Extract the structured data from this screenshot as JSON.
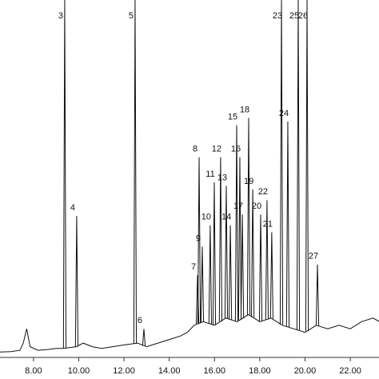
{
  "chart_data": {
    "type": "chromatogram",
    "x": [
      6.5,
      7.0,
      7.4,
      7.55,
      7.7,
      7.85,
      8.2,
      8.6,
      9.0,
      9.3,
      9.9,
      10.2,
      10.6,
      11.0,
      11.5,
      12.0,
      12.6,
      13.0,
      13.5,
      14.0,
      14.5,
      14.8,
      15.1,
      15.5,
      16.0,
      16.5,
      17.0,
      17.5,
      18.0,
      18.5,
      19.0,
      19.5,
      20.0,
      20.5,
      21.0,
      21.5,
      22.0,
      22.5,
      23.0,
      23.3
    ],
    "values": [
      1.5,
      1.6,
      2.0,
      4,
      8,
      3,
      2,
      2.2,
      2.5,
      2.5,
      3,
      4,
      3,
      2.5,
      3,
      3.5,
      4,
      3,
      4,
      5,
      6,
      7,
      9,
      10,
      9,
      11,
      10,
      12,
      10,
      11,
      9,
      8,
      7,
      9,
      8,
      9,
      8,
      10,
      11,
      10
    ],
    "peaks": [
      {
        "label": "3",
        "x": 9.38,
        "value": 100
      },
      {
        "label": "4",
        "x": 9.91,
        "value": 39.6
      },
      {
        "label": "5",
        "x": 12.49,
        "value": 100
      },
      {
        "label": "6",
        "x": 12.88,
        "value": 8
      },
      {
        "label": "7",
        "x": 15.25,
        "value": 23
      },
      {
        "label": "8",
        "x": 15.32,
        "value": 56
      },
      {
        "label": "9",
        "x": 15.46,
        "value": 31
      },
      {
        "label": "10",
        "x": 15.81,
        "value": 37
      },
      {
        "label": "11",
        "x": 15.99,
        "value": 49
      },
      {
        "label": "12",
        "x": 16.27,
        "value": 56
      },
      {
        "label": "13",
        "x": 16.52,
        "value": 48
      },
      {
        "label": "14",
        "x": 16.7,
        "value": 37
      },
      {
        "label": "15",
        "x": 16.98,
        "value": 65
      },
      {
        "label": "16",
        "x": 17.12,
        "value": 56
      },
      {
        "label": "17",
        "x": 17.23,
        "value": 40
      },
      {
        "label": "18",
        "x": 17.51,
        "value": 67
      },
      {
        "label": "19",
        "x": 17.69,
        "value": 47
      },
      {
        "label": "20",
        "x": 18.04,
        "value": 40
      },
      {
        "label": "21",
        "x": 18.53,
        "value": 35
      },
      {
        "label": "22",
        "x": 18.32,
        "value": 44
      },
      {
        "label": "23",
        "x": 18.96,
        "value": 100
      },
      {
        "label": "24",
        "x": 19.24,
        "value": 66
      },
      {
        "label": "25",
        "x": 19.7,
        "value": 100
      },
      {
        "label": "26",
        "x": 20.09,
        "value": 100
      },
      {
        "label": "27",
        "x": 20.55,
        "value": 26
      }
    ],
    "color": "#111111",
    "xlim": [
      6.52,
      23.27
    ],
    "ylim": [
      0,
      100
    ],
    "xticks": [
      {
        "value": 8,
        "label": "8.00"
      },
      {
        "value": 10,
        "label": "10.00"
      },
      {
        "value": 12,
        "label": "12.00"
      },
      {
        "value": 14,
        "label": "14.00"
      },
      {
        "value": 16,
        "label": "16.00"
      },
      {
        "value": 18,
        "label": "18.00"
      },
      {
        "value": 20,
        "label": "20.00"
      },
      {
        "value": 22,
        "label": "22.00"
      }
    ]
  }
}
